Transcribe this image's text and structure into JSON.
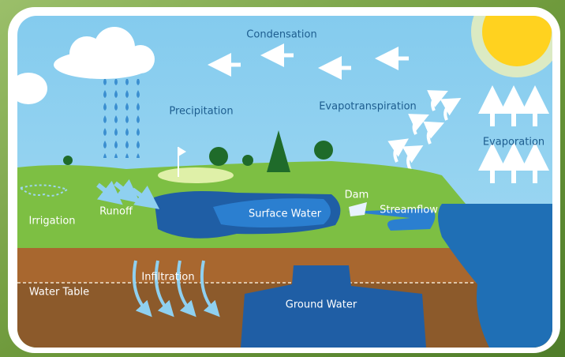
{
  "labels": {
    "condensation": "Condensation",
    "precipitation": "Precipitation",
    "evapotranspiration": "Evapotranspiration",
    "evaporation": "Evaporation",
    "dam": "Dam",
    "streamflow": "Streamflow",
    "irrigation": "Irrigation",
    "runoff": "Runoff",
    "surface_water": "Surface Water",
    "infiltration": "Infiltration",
    "water_table": "Water Table",
    "ground_water": "Ground Water"
  }
}
